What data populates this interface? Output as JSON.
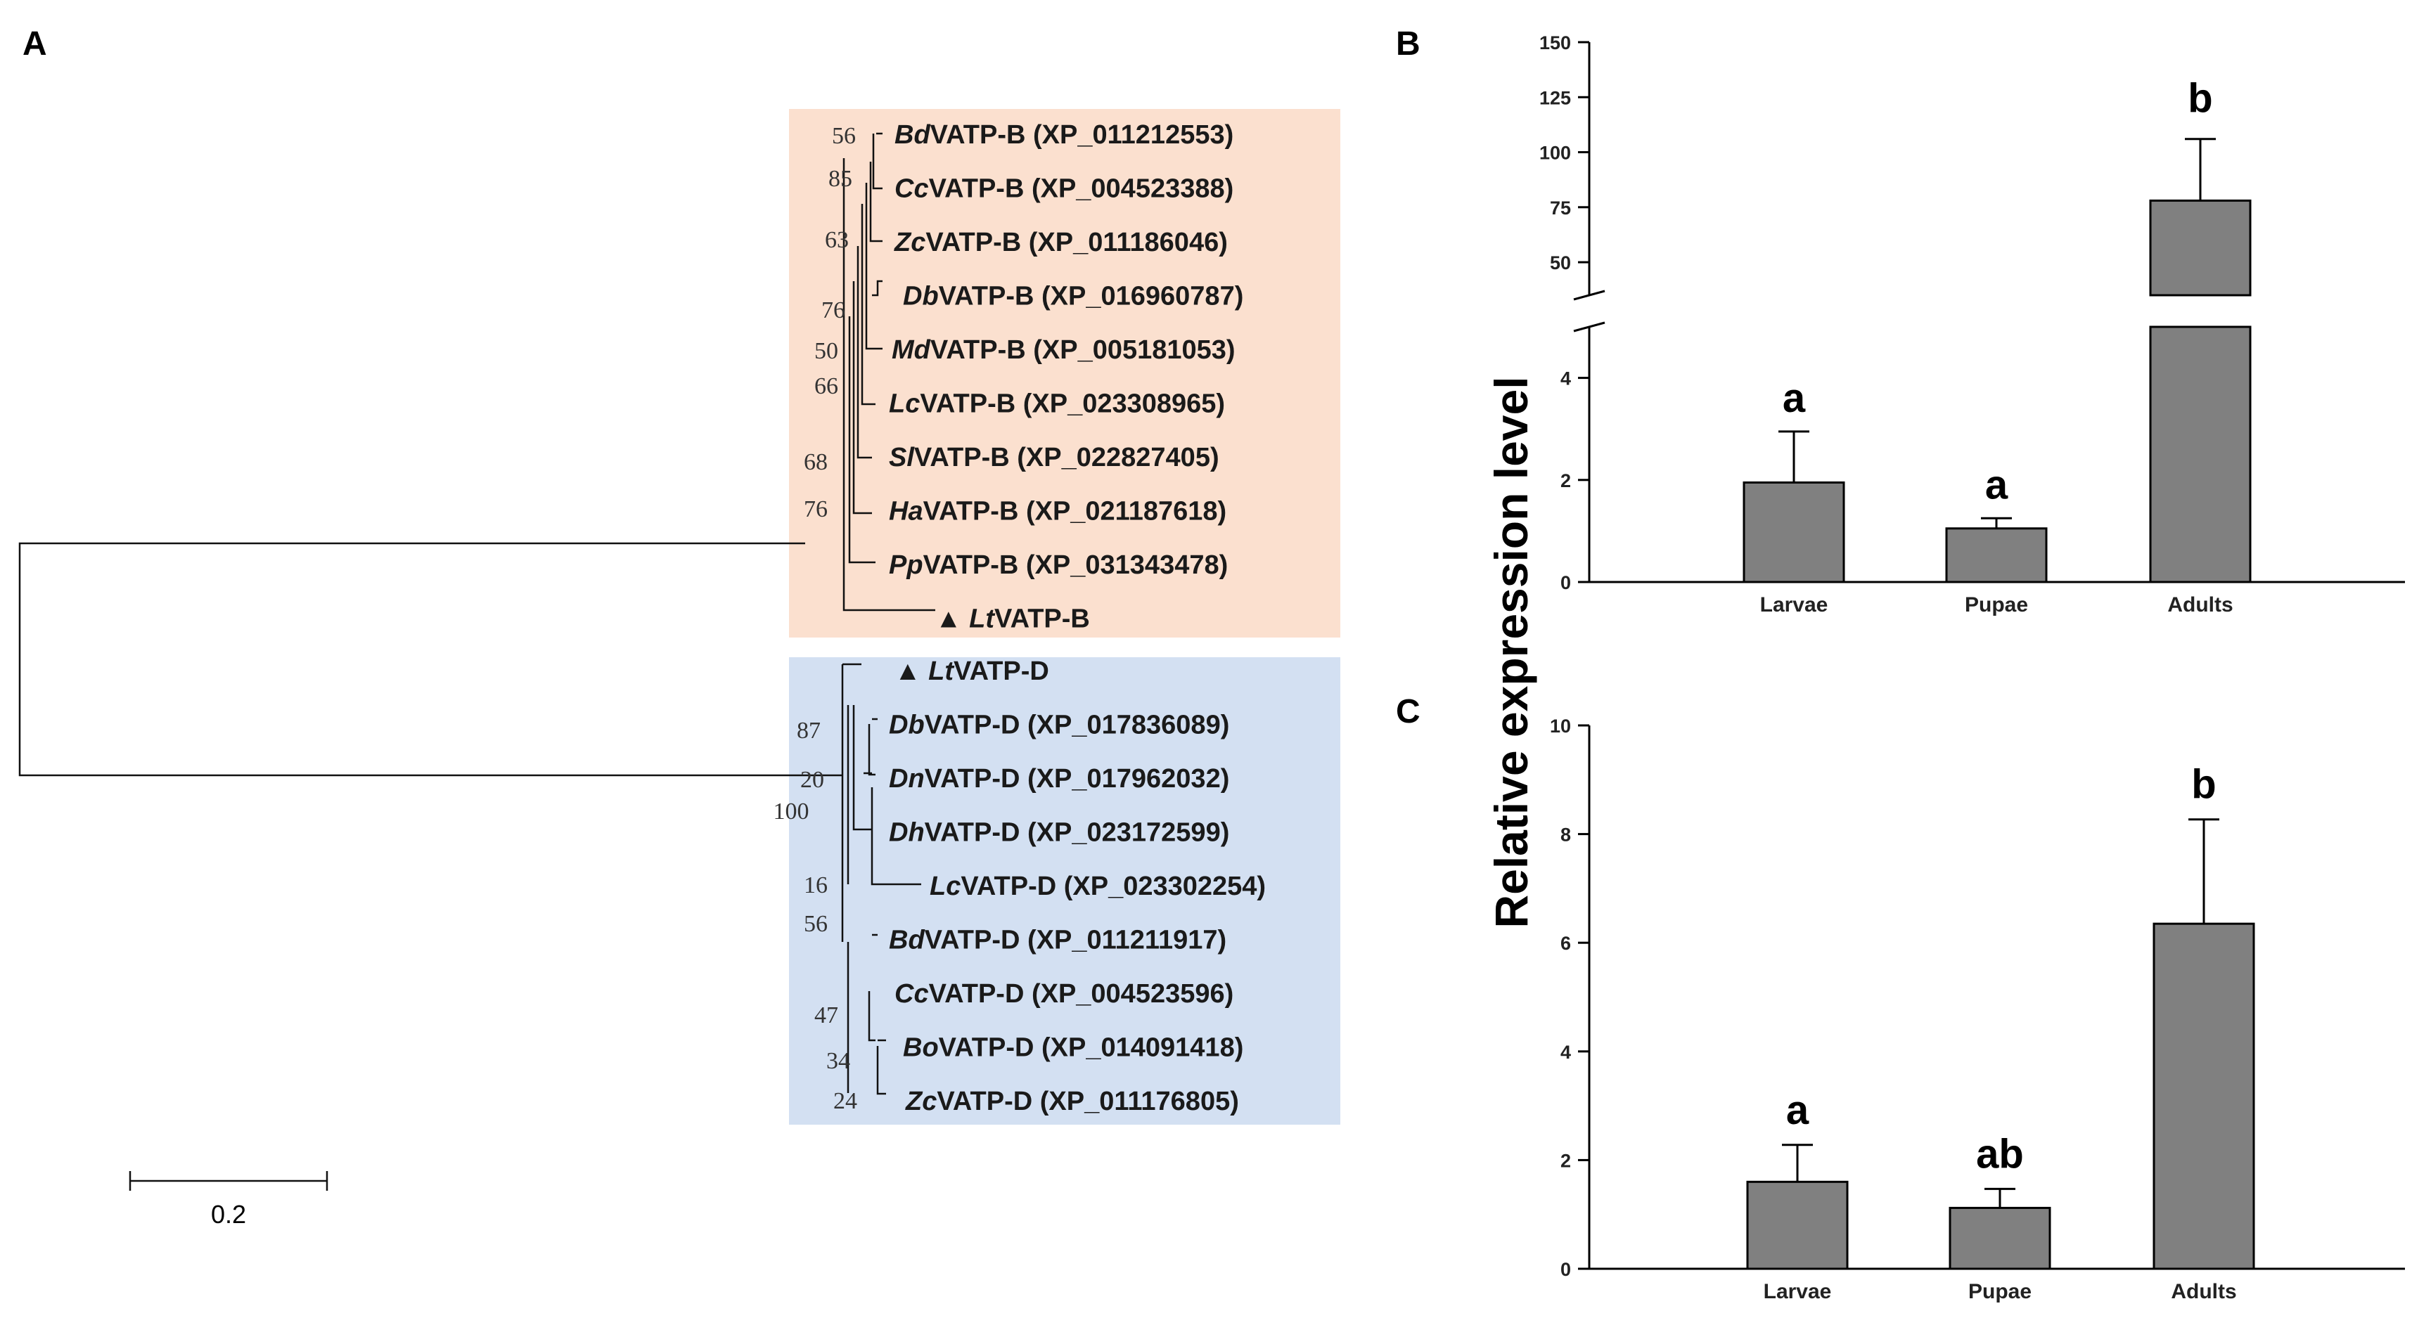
{
  "panels": {
    "a": "A",
    "b": "B",
    "c": "C"
  },
  "tree": {
    "group_colors": {
      "B": "#fbe0cf",
      "D": "#d3e0f2"
    },
    "leaves_b": [
      {
        "prefix": "Bd",
        "name": "VATP-B (XP_011212553)"
      },
      {
        "prefix": "Cc",
        "name": "VATP-B (XP_004523388)"
      },
      {
        "prefix": "Zc",
        "name": "VATP-B (XP_011186046)"
      },
      {
        "prefix": "Db",
        "name": "VATP-B (XP_016960787)"
      },
      {
        "prefix": "Md",
        "name": "VATP-B (XP_005181053)"
      },
      {
        "prefix": "Lc",
        "name": "VATP-B (XP_023308965)"
      },
      {
        "prefix": "Sl",
        "name": "VATP-B (XP_022827405)"
      },
      {
        "prefix": "Ha",
        "name": "VATP-B (XP_021187618)"
      },
      {
        "prefix": "Pp",
        "name": "VATP-B (XP_031343478)"
      },
      {
        "marker": "▲",
        "prefix": "Lt",
        "name": "VATP-B"
      }
    ],
    "leaves_d": [
      {
        "marker": "▲",
        "prefix": "Lt",
        "name": "VATP-D"
      },
      {
        "prefix": "Db",
        "name": "VATP-D (XP_017836089)"
      },
      {
        "prefix": "Dn",
        "name": "VATP-D (XP_017962032)"
      },
      {
        "prefix": "Dh",
        "name": "VATP-D (XP_023172599)"
      },
      {
        "prefix": "Lc",
        "name": "VATP-D (XP_023302254)"
      },
      {
        "prefix": "Bd",
        "name": "VATP-D (XP_011211917)"
      },
      {
        "prefix": "Cc",
        "name": "VATP-D (XP_004523596)"
      },
      {
        "prefix": "Bo",
        "name": "VATP-D (XP_014091418)"
      },
      {
        "prefix": "Zc",
        "name": "VATP-D (XP_011176805)"
      }
    ],
    "bootstrap_b": [
      "56",
      "85",
      "63",
      "76",
      "50",
      "66",
      "68",
      "76"
    ],
    "bootstrap_d": [
      "87",
      "20",
      "100",
      "16",
      "56",
      "47",
      "34",
      "24"
    ],
    "scale_bar": "0.2"
  },
  "chart_data": [
    {
      "type": "bar",
      "panel": "B",
      "categories": [
        "Larvae",
        "Pupae",
        "Adults"
      ],
      "values": [
        1.95,
        1.05,
        78
      ],
      "errors": [
        1.0,
        0.2,
        28
      ],
      "significance": [
        "a",
        "a",
        "b"
      ],
      "ylabel": "Relative expression level",
      "broken_axis": true,
      "lower_range": [
        0,
        5
      ],
      "upper_range": [
        35,
        150
      ],
      "lower_ticks": [
        "0",
        "2",
        "4"
      ],
      "upper_ticks": [
        "50",
        "75",
        "100",
        "125",
        "150"
      ],
      "grid": false
    },
    {
      "type": "bar",
      "panel": "C",
      "categories": [
        "Larvae",
        "Pupae",
        "Adults"
      ],
      "values": [
        1.6,
        1.12,
        6.35
      ],
      "errors": [
        0.68,
        0.35,
        1.92
      ],
      "significance": [
        "a",
        "ab",
        "b"
      ],
      "ylim": [
        0,
        10
      ],
      "ticks": [
        "0",
        "2",
        "4",
        "6",
        "8",
        "10"
      ],
      "grid": false
    }
  ]
}
